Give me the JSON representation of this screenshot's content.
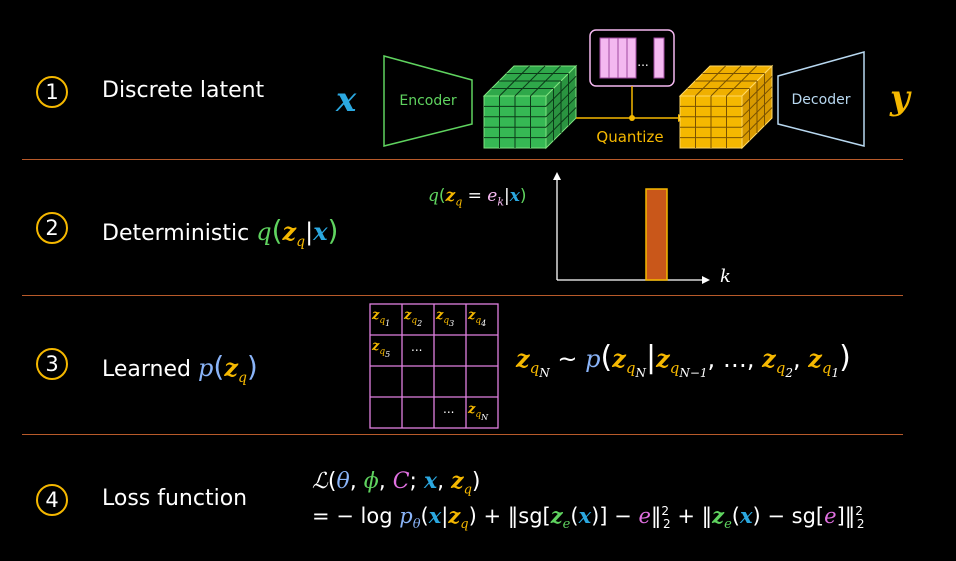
{
  "rows": [
    {
      "number": "1",
      "label": "Discrete latent"
    },
    {
      "number": "2",
      "label": "Deterministic"
    },
    {
      "number": "3",
      "label": "Learned"
    },
    {
      "number": "4",
      "label": "Loss function"
    }
  ],
  "pipeline": {
    "input_symbol": "x",
    "encoder_label": "Encoder",
    "quantize_label": "Quantize",
    "decoder_label": "Decoder",
    "output_symbol": "y",
    "codebook_ellipsis": "...",
    "colors": {
      "encoder": "#5fd35f",
      "latent_green": "#2fa84a",
      "latent_orange": "#f5b800",
      "codebook": "#f4b8f0",
      "decoder": "#b8d8f0",
      "x": "#2ba8e0",
      "y": "#f5b800"
    }
  },
  "row2": {
    "q": "q",
    "z": "z",
    "sub_q": "q",
    "x": "x",
    "plot_q_label": "q",
    "plot_e": "e",
    "plot_k_sub": "k",
    "axis_k": "k"
  },
  "row3": {
    "p": "p",
    "z": "z",
    "sub_q": "q",
    "grid_cells": [
      [
        "z_q1",
        "z_q2",
        "z_q3",
        "z_q4"
      ],
      [
        "z_q5",
        "...",
        "",
        ""
      ],
      [
        "",
        "",
        "",
        ""
      ],
      [
        "",
        "",
        "...",
        "z_qN"
      ]
    ],
    "subs": {
      "s1": "1",
      "s2": "2",
      "s3": "3",
      "s4": "4",
      "s5": "5",
      "sN": "N"
    },
    "ellipsis": "...",
    "prior_expr": {
      "lhs_sub": "N",
      "tilde": "~",
      "p": "p",
      "ldots": "…",
      "sub_Nm1": "N−1",
      "sub_2": "2",
      "sub_1": "1"
    }
  },
  "row4": {
    "L": "ℒ",
    "theta": "θ",
    "phi": "ϕ",
    "C": "C",
    "x": "x",
    "z": "z",
    "minus_log": "= − log",
    "p": "p",
    "sg": "sg",
    "e": "e",
    "sup2": "2",
    "sub2": "2"
  }
}
